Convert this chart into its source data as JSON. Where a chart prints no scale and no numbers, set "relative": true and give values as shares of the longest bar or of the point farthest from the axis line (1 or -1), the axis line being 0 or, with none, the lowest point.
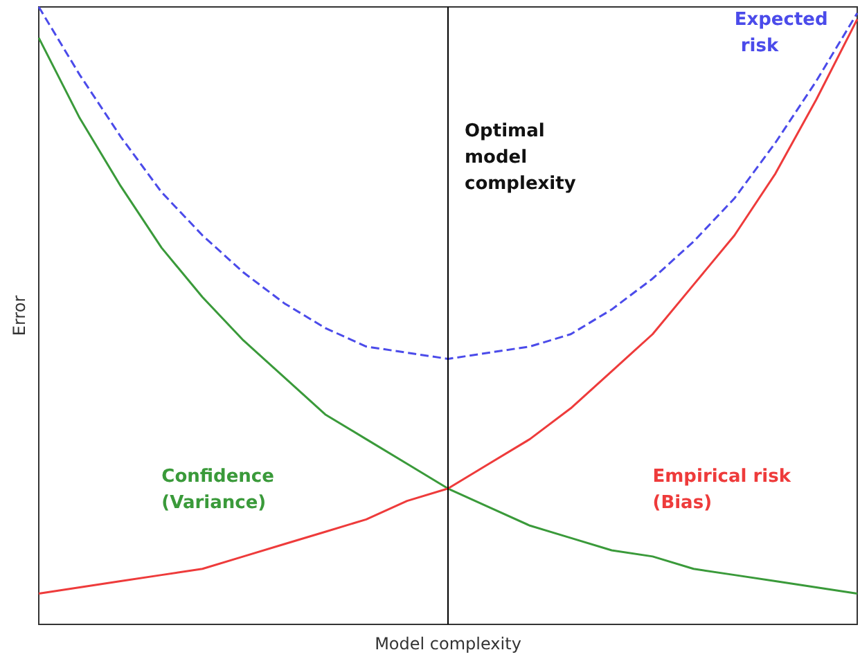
{
  "chart_data": {
    "type": "line",
    "xlabel": "Model complexity",
    "ylabel": "Error",
    "relative": true,
    "tick_labels": false,
    "grid": false,
    "legend": false,
    "marker": "none",
    "categories": [
      null,
      null,
      null,
      null,
      null,
      null,
      null,
      null,
      null,
      null,
      null,
      null,
      null,
      null,
      null,
      null,
      null,
      null,
      null,
      null,
      null
    ],
    "series": [
      {
        "name": "Confidence (Variance)",
        "color": "#3a9a3a",
        "line_style": "solid",
        "values": [
          0.95,
          0.82,
          0.71,
          0.61,
          0.53,
          0.46,
          0.4,
          0.34,
          0.3,
          0.26,
          0.22,
          0.19,
          0.16,
          0.14,
          0.12,
          0.11,
          0.09,
          0.08,
          0.07,
          0.06,
          0.05
        ]
      },
      {
        "name": "Empirical risk (Bias)",
        "color": "#ee3b3b",
        "line_style": "solid",
        "values": [
          0.05,
          0.06,
          0.07,
          0.08,
          0.09,
          0.11,
          0.13,
          0.15,
          0.17,
          0.2,
          0.22,
          0.26,
          0.3,
          0.35,
          0.41,
          0.47,
          0.55,
          0.63,
          0.73,
          0.85,
          0.98
        ]
      },
      {
        "name": "Expected risk",
        "color": "#4b4bea",
        "line_style": "dashed",
        "values": [
          1,
          0.89,
          0.79,
          0.7,
          0.63,
          0.57,
          0.52,
          0.48,
          0.45,
          0.44,
          0.43,
          0.44,
          0.45,
          0.47,
          0.51,
          0.56,
          0.62,
          0.69,
          0.78,
          0.88,
          0.99
        ]
      }
    ],
    "ref_lines": [
      {
        "axis": "x",
        "label": "Optimal model complexity",
        "color": "#000000"
      }
    ]
  }
}
